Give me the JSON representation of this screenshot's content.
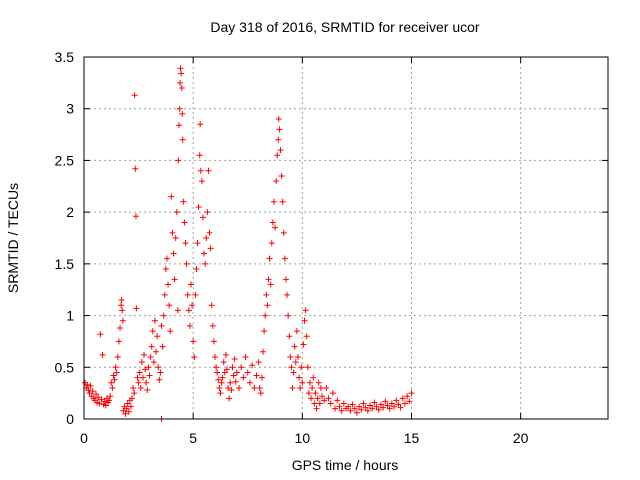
{
  "chart_data": {
    "type": "scatter",
    "title": "Day 318 of 2016, SRMTID for receiver ucor",
    "xlabel": "GPS time / hours",
    "ylabel": "SRMTID / TECUs",
    "xlim": [
      0,
      24
    ],
    "ylim": [
      0,
      3.5
    ],
    "xticks": [
      0,
      5,
      10,
      15,
      20
    ],
    "xtick_labels": [
      "0",
      "5",
      "10",
      "15",
      "20"
    ],
    "yticks": [
      0,
      0.5,
      1,
      1.5,
      2,
      2.5,
      3,
      3.5
    ],
    "ytick_labels": [
      "0",
      "0.5",
      "1",
      "1.5",
      "2",
      "2.5",
      "3",
      "3.5"
    ],
    "grid": true,
    "series": [
      {
        "name": "SRMTID",
        "marker": "plus",
        "color": "#ff0000",
        "points": [
          [
            0.05,
            0.35
          ],
          [
            0.1,
            0.3
          ],
          [
            0.15,
            0.33
          ],
          [
            0.2,
            0.28
          ],
          [
            0.25,
            0.25
          ],
          [
            0.3,
            0.32
          ],
          [
            0.35,
            0.22
          ],
          [
            0.4,
            0.27
          ],
          [
            0.45,
            0.2
          ],
          [
            0.5,
            0.18
          ],
          [
            0.55,
            0.24
          ],
          [
            0.6,
            0.16
          ],
          [
            0.65,
            0.21
          ],
          [
            0.7,
            0.15
          ],
          [
            0.75,
            0.82
          ],
          [
            0.8,
            0.19
          ],
          [
            0.85,
            0.62
          ],
          [
            0.9,
            0.14
          ],
          [
            0.95,
            0.17
          ],
          [
            1.0,
            0.13
          ],
          [
            1.05,
            0.2
          ],
          [
            1.1,
            0.16
          ],
          [
            1.15,
            0.18
          ],
          [
            1.2,
            0.22
          ],
          [
            1.25,
            0.35
          ],
          [
            1.3,
            0.3
          ],
          [
            1.35,
            0.42
          ],
          [
            1.4,
            0.38
          ],
          [
            1.45,
            0.5
          ],
          [
            1.5,
            0.45
          ],
          [
            1.55,
            0.6
          ],
          [
            1.6,
            0.75
          ],
          [
            1.65,
            0.88
          ],
          [
            1.7,
            1.1
          ],
          [
            1.72,
            1.15
          ],
          [
            1.75,
            1.05
          ],
          [
            1.78,
            0.95
          ],
          [
            1.8,
            0.08
          ],
          [
            1.85,
            0.12
          ],
          [
            1.9,
            0.05
          ],
          [
            1.95,
            0.1
          ],
          [
            2.0,
            0.15
          ],
          [
            2.05,
            0.07
          ],
          [
            2.1,
            0.18
          ],
          [
            2.15,
            0.12
          ],
          [
            2.2,
            0.2
          ],
          [
            2.25,
            0.3
          ],
          [
            2.3,
            0.25
          ],
          [
            2.32,
            3.13
          ],
          [
            2.35,
            2.42
          ],
          [
            2.38,
            1.96
          ],
          [
            2.4,
            1.07
          ],
          [
            2.45,
            0.4
          ],
          [
            2.5,
            0.35
          ],
          [
            2.55,
            0.45
          ],
          [
            2.6,
            0.3
          ],
          [
            2.65,
            0.55
          ],
          [
            2.7,
            0.4
          ],
          [
            2.75,
            0.62
          ],
          [
            2.8,
            0.48
          ],
          [
            2.85,
            0.35
          ],
          [
            2.9,
            0.28
          ],
          [
            2.95,
            0.5
          ],
          [
            3.0,
            0.42
          ],
          [
            3.05,
            0.6
          ],
          [
            3.1,
            0.7
          ],
          [
            3.15,
            0.85
          ],
          [
            3.2,
            0.55
          ],
          [
            3.25,
            0.95
          ],
          [
            3.3,
            0.65
          ],
          [
            3.35,
            0.8
          ],
          [
            3.4,
            0.5
          ],
          [
            3.45,
            0.38
          ],
          [
            3.5,
            0.45
          ],
          [
            3.55,
            0.9
          ],
          [
            3.6,
            0.7
          ],
          [
            3.65,
            1.0
          ],
          [
            3.7,
            1.2
          ],
          [
            3.75,
            1.45
          ],
          [
            3.8,
            1.55
          ],
          [
            3.85,
            1.3
          ],
          [
            3.9,
            1.1
          ],
          [
            3.95,
            0.85
          ],
          [
            4.0,
            2.15
          ],
          [
            4.05,
            1.8
          ],
          [
            4.1,
            1.6
          ],
          [
            4.15,
            1.35
          ],
          [
            4.2,
            1.75
          ],
          [
            4.25,
            2.0
          ],
          [
            4.3,
            1.05
          ],
          [
            4.32,
            2.5
          ],
          [
            4.35,
            2.84
          ],
          [
            4.38,
            3.0
          ],
          [
            4.4,
            3.25
          ],
          [
            4.42,
            3.39
          ],
          [
            4.45,
            3.34
          ],
          [
            4.48,
            3.2
          ],
          [
            4.5,
            2.95
          ],
          [
            4.52,
            2.7
          ],
          [
            4.55,
            2.1
          ],
          [
            4.6,
            1.9
          ],
          [
            4.65,
            1.7
          ],
          [
            4.7,
            1.5
          ],
          [
            4.75,
            1.2
          ],
          [
            4.8,
            1.05
          ],
          [
            4.85,
            0.9
          ],
          [
            4.9,
            1.3
          ],
          [
            4.95,
            1.1
          ],
          [
            5.0,
            0.75
          ],
          [
            5.05,
            0.6
          ],
          [
            5.1,
            1.2
          ],
          [
            5.15,
            1.45
          ],
          [
            5.2,
            1.7
          ],
          [
            5.25,
            2.05
          ],
          [
            5.3,
            2.55
          ],
          [
            5.32,
            2.85
          ],
          [
            5.35,
            2.4
          ],
          [
            5.4,
            2.3
          ],
          [
            5.45,
            1.95
          ],
          [
            5.5,
            1.6
          ],
          [
            5.55,
            1.5
          ],
          [
            5.6,
            1.75
          ],
          [
            5.65,
            2.0
          ],
          [
            5.7,
            2.4
          ],
          [
            5.75,
            1.8
          ],
          [
            5.8,
            1.65
          ],
          [
            5.85,
            1.1
          ],
          [
            5.9,
            0.9
          ],
          [
            5.95,
            0.75
          ],
          [
            6.0,
            0.6
          ],
          [
            6.05,
            0.5
          ],
          [
            6.1,
            0.45
          ],
          [
            6.15,
            0.38
          ],
          [
            6.2,
            0.3
          ],
          [
            6.25,
            0.25
          ],
          [
            6.3,
            0.35
          ],
          [
            6.35,
            0.4
          ],
          [
            6.4,
            0.55
          ],
          [
            6.45,
            0.45
          ],
          [
            6.5,
            0.62
          ],
          [
            6.55,
            0.48
          ],
          [
            6.6,
            0.3
          ],
          [
            6.65,
            0.2
          ],
          [
            6.7,
            0.35
          ],
          [
            6.75,
            0.28
          ],
          [
            6.8,
            0.5
          ],
          [
            6.85,
            0.42
          ],
          [
            6.9,
            0.58
          ],
          [
            6.95,
            0.36
          ],
          [
            7.0,
            0.45
          ],
          [
            7.1,
            0.3
          ],
          [
            7.2,
            0.5
          ],
          [
            7.3,
            0.4
          ],
          [
            7.4,
            0.6
          ],
          [
            7.5,
            0.45
          ],
          [
            7.6,
            0.35
          ],
          [
            7.7,
            0.52
          ],
          [
            7.8,
            0.3
          ],
          [
            7.9,
            0.42
          ],
          [
            8.0,
            0.55
          ],
          [
            8.05,
            0.3
          ],
          [
            8.1,
            0.25
          ],
          [
            8.15,
            0.4
          ],
          [
            8.2,
            0.65
          ],
          [
            8.25,
            0.85
          ],
          [
            8.3,
            1.0
          ],
          [
            8.35,
            1.2
          ],
          [
            8.4,
            1.1
          ],
          [
            8.45,
            1.35
          ],
          [
            8.5,
            1.55
          ],
          [
            8.55,
            1.3
          ],
          [
            8.6,
            1.7
          ],
          [
            8.65,
            1.9
          ],
          [
            8.7,
            2.1
          ],
          [
            8.75,
            1.85
          ],
          [
            8.8,
            2.3
          ],
          [
            8.85,
            2.55
          ],
          [
            8.9,
            2.7
          ],
          [
            8.92,
            2.9
          ],
          [
            8.95,
            2.8
          ],
          [
            9.0,
            2.6
          ],
          [
            9.05,
            2.35
          ],
          [
            9.1,
            2.1
          ],
          [
            9.15,
            1.8
          ],
          [
            9.2,
            1.55
          ],
          [
            9.25,
            1.35
          ],
          [
            9.3,
            1.2
          ],
          [
            9.35,
            1.0
          ],
          [
            9.4,
            0.8
          ],
          [
            9.45,
            0.6
          ],
          [
            9.5,
            0.5
          ],
          [
            9.55,
            0.3
          ],
          [
            9.6,
            0.45
          ],
          [
            9.65,
            0.7
          ],
          [
            9.7,
            0.55
          ],
          [
            9.75,
            0.85
          ],
          [
            9.8,
            0.6
          ],
          [
            9.85,
            0.4
          ],
          [
            9.9,
            0.3
          ],
          [
            9.95,
            0.5
          ],
          [
            10.0,
            0.35
          ],
          [
            10.05,
            0.72
          ],
          [
            10.1,
            0.95
          ],
          [
            10.15,
            1.05
          ],
          [
            10.2,
            0.8
          ],
          [
            10.25,
            0.5
          ],
          [
            10.3,
            0.25
          ],
          [
            10.35,
            0.35
          ],
          [
            10.4,
            0.2
          ],
          [
            10.45,
            0.3
          ],
          [
            10.5,
            0.4
          ],
          [
            10.55,
            0.15
          ],
          [
            10.6,
            0.25
          ],
          [
            10.65,
            0.1
          ],
          [
            10.7,
            0.2
          ],
          [
            10.75,
            0.35
          ],
          [
            10.8,
            0.15
          ],
          [
            10.85,
            0.3
          ],
          [
            10.9,
            0.22
          ],
          [
            11.0,
            0.18
          ],
          [
            11.1,
            0.3
          ],
          [
            11.2,
            0.2
          ],
          [
            11.3,
            0.15
          ],
          [
            11.4,
            0.25
          ],
          [
            11.5,
            0.1
          ],
          [
            11.6,
            0.18
          ],
          [
            11.7,
            0.12
          ],
          [
            11.8,
            0.08
          ],
          [
            11.9,
            0.15
          ],
          [
            12.0,
            0.1
          ],
          [
            12.1,
            0.12
          ],
          [
            12.2,
            0.08
          ],
          [
            12.3,
            0.14
          ],
          [
            12.4,
            0.1
          ],
          [
            12.5,
            0.06
          ],
          [
            12.6,
            0.12
          ],
          [
            12.7,
            0.09
          ],
          [
            12.8,
            0.15
          ],
          [
            12.9,
            0.11
          ],
          [
            13.0,
            0.08
          ],
          [
            13.1,
            0.13
          ],
          [
            13.2,
            0.1
          ],
          [
            13.3,
            0.16
          ],
          [
            13.4,
            0.12
          ],
          [
            13.5,
            0.09
          ],
          [
            13.6,
            0.14
          ],
          [
            13.7,
            0.11
          ],
          [
            13.8,
            0.17
          ],
          [
            13.9,
            0.13
          ],
          [
            14.0,
            0.1
          ],
          [
            14.1,
            0.15
          ],
          [
            14.2,
            0.12
          ],
          [
            14.3,
            0.18
          ],
          [
            14.4,
            0.14
          ],
          [
            14.5,
            0.11
          ],
          [
            14.6,
            0.2
          ],
          [
            14.7,
            0.15
          ],
          [
            14.8,
            0.22
          ],
          [
            14.9,
            0.17
          ],
          [
            15.0,
            0.25
          ],
          [
            3.55,
            0.0
          ]
        ]
      }
    ]
  }
}
